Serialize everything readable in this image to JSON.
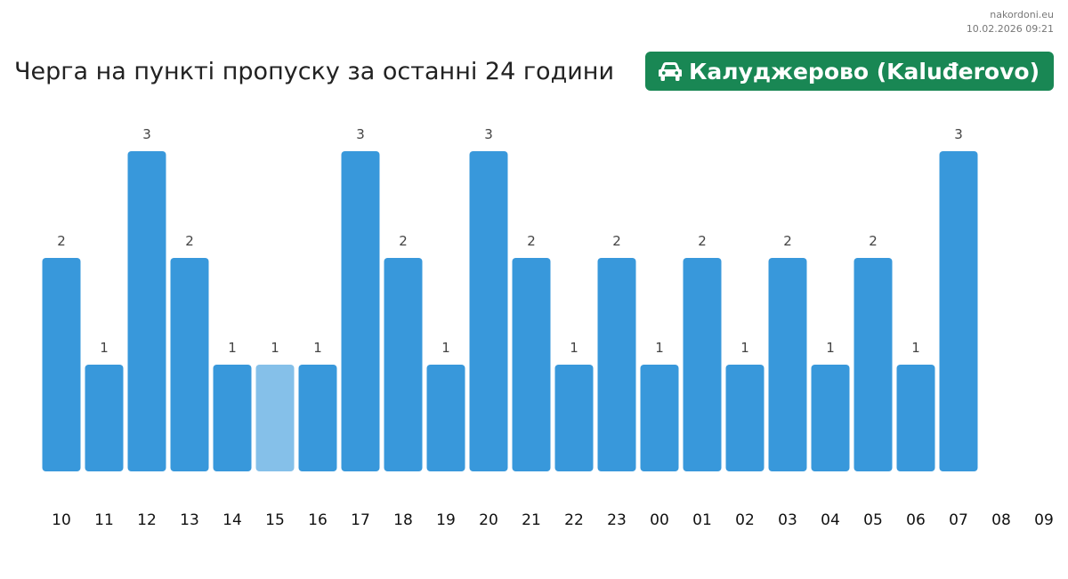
{
  "site": {
    "name": "nakordoni.eu",
    "timestamp": "10.02.2026 09:21"
  },
  "header": {
    "title": "Черга на пункті пропуску за останні 24 години",
    "checkpoint": {
      "icon": "car-icon",
      "label": "Калуджерово (Kaluđerovo)",
      "color": "#198754"
    }
  },
  "chart_data": {
    "type": "bar",
    "title": "Черга на пункті пропуску за останні 24 години",
    "xlabel": "",
    "ylabel": "",
    "categories": [
      "10",
      "11",
      "12",
      "13",
      "14",
      "15",
      "16",
      "17",
      "18",
      "19",
      "20",
      "21",
      "22",
      "23",
      "00",
      "01",
      "02",
      "03",
      "04",
      "05",
      "06",
      "07",
      "08",
      "09"
    ],
    "values": [
      2,
      1,
      3,
      2,
      1,
      1,
      1,
      3,
      2,
      1,
      3,
      2,
      1,
      2,
      1,
      2,
      1,
      2,
      1,
      2,
      1,
      3,
      null,
      null
    ],
    "highlighted_category": "15",
    "ylim": [
      0,
      3
    ],
    "grid": false,
    "legend": "none",
    "colors": {
      "bar": "#3898db",
      "highlight": "#85c0e9",
      "value_label": "#444444",
      "tick_label": "#111111"
    }
  }
}
